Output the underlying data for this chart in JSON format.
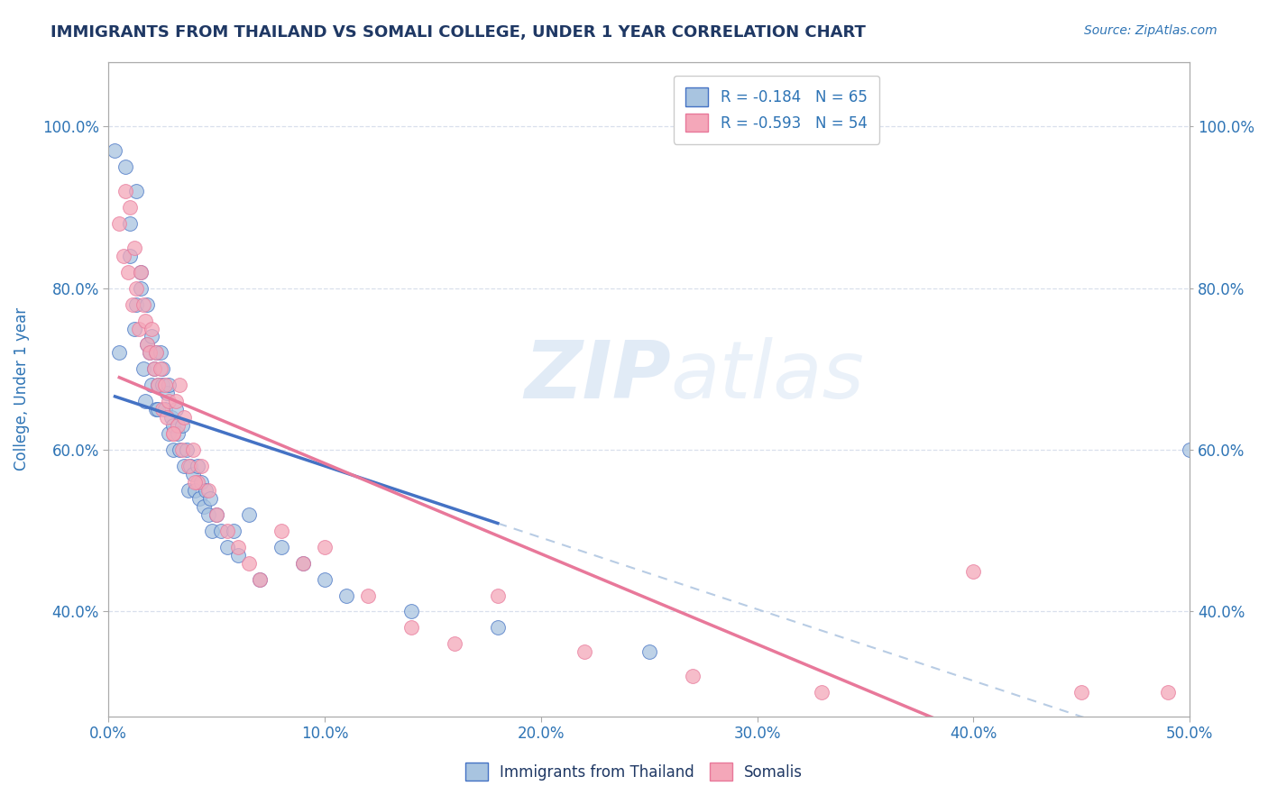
{
  "title": "IMMIGRANTS FROM THAILAND VS SOMALI COLLEGE, UNDER 1 YEAR CORRELATION CHART",
  "source": "Source: ZipAtlas.com",
  "ylabel": "College, Under 1 year",
  "xlim": [
    0.0,
    0.5
  ],
  "ylim": [
    0.27,
    1.08
  ],
  "xtick_labels": [
    "0.0%",
    "10.0%",
    "20.0%",
    "30.0%",
    "40.0%",
    "50.0%"
  ],
  "xtick_vals": [
    0.0,
    0.1,
    0.2,
    0.3,
    0.4,
    0.5
  ],
  "ytick_labels": [
    "40.0%",
    "60.0%",
    "80.0%",
    "100.0%"
  ],
  "ytick_vals": [
    0.4,
    0.6,
    0.8,
    1.0
  ],
  "legend_R1": "R = -0.184",
  "legend_N1": "N = 65",
  "legend_R2": "R = -0.593",
  "legend_N2": "N = 54",
  "color_blue": "#a8c4e0",
  "color_pink": "#f4a7b9",
  "color_line_blue": "#4472c4",
  "color_line_pink": "#e8789a",
  "color_dashed": "#b8cce4",
  "color_grid": "#d0d8e8",
  "color_title": "#1f3864",
  "color_axis_label": "#2e74b5",
  "color_source": "#2e74b5",
  "watermark_zip": "ZIP",
  "watermark_atlas": "atlas",
  "background_color": "#ffffff",
  "scatter_blue_x": [
    0.003,
    0.005,
    0.008,
    0.01,
    0.01,
    0.012,
    0.013,
    0.013,
    0.015,
    0.015,
    0.016,
    0.017,
    0.018,
    0.018,
    0.019,
    0.02,
    0.02,
    0.021,
    0.022,
    0.022,
    0.023,
    0.023,
    0.024,
    0.025,
    0.025,
    0.026,
    0.027,
    0.028,
    0.028,
    0.029,
    0.03,
    0.03,
    0.031,
    0.032,
    0.033,
    0.034,
    0.035,
    0.036,
    0.037,
    0.038,
    0.039,
    0.04,
    0.041,
    0.042,
    0.043,
    0.044,
    0.045,
    0.046,
    0.047,
    0.048,
    0.05,
    0.052,
    0.055,
    0.058,
    0.06,
    0.065,
    0.07,
    0.08,
    0.09,
    0.1,
    0.11,
    0.14,
    0.18,
    0.25,
    0.5
  ],
  "scatter_blue_y": [
    0.97,
    0.72,
    0.95,
    0.88,
    0.84,
    0.75,
    0.92,
    0.78,
    0.82,
    0.8,
    0.7,
    0.66,
    0.73,
    0.78,
    0.72,
    0.74,
    0.68,
    0.7,
    0.72,
    0.65,
    0.68,
    0.65,
    0.72,
    0.68,
    0.7,
    0.65,
    0.67,
    0.62,
    0.68,
    0.64,
    0.63,
    0.6,
    0.65,
    0.62,
    0.6,
    0.63,
    0.58,
    0.6,
    0.55,
    0.58,
    0.57,
    0.55,
    0.58,
    0.54,
    0.56,
    0.53,
    0.55,
    0.52,
    0.54,
    0.5,
    0.52,
    0.5,
    0.48,
    0.5,
    0.47,
    0.52,
    0.44,
    0.48,
    0.46,
    0.44,
    0.42,
    0.4,
    0.38,
    0.35,
    0.6
  ],
  "scatter_pink_x": [
    0.005,
    0.007,
    0.008,
    0.009,
    0.01,
    0.011,
    0.012,
    0.013,
    0.014,
    0.015,
    0.016,
    0.017,
    0.018,
    0.019,
    0.02,
    0.021,
    0.022,
    0.023,
    0.024,
    0.025,
    0.026,
    0.027,
    0.028,
    0.03,
    0.031,
    0.032,
    0.033,
    0.034,
    0.035,
    0.037,
    0.039,
    0.041,
    0.043,
    0.046,
    0.05,
    0.055,
    0.06,
    0.065,
    0.07,
    0.08,
    0.09,
    0.1,
    0.12,
    0.14,
    0.16,
    0.18,
    0.22,
    0.27,
    0.33,
    0.4,
    0.45,
    0.49,
    0.03,
    0.04
  ],
  "scatter_pink_y": [
    0.88,
    0.84,
    0.92,
    0.82,
    0.9,
    0.78,
    0.85,
    0.8,
    0.75,
    0.82,
    0.78,
    0.76,
    0.73,
    0.72,
    0.75,
    0.7,
    0.72,
    0.68,
    0.7,
    0.65,
    0.68,
    0.64,
    0.66,
    0.62,
    0.66,
    0.63,
    0.68,
    0.6,
    0.64,
    0.58,
    0.6,
    0.56,
    0.58,
    0.55,
    0.52,
    0.5,
    0.48,
    0.46,
    0.44,
    0.5,
    0.46,
    0.48,
    0.42,
    0.38,
    0.36,
    0.42,
    0.35,
    0.32,
    0.3,
    0.45,
    0.3,
    0.3,
    0.62,
    0.56
  ]
}
